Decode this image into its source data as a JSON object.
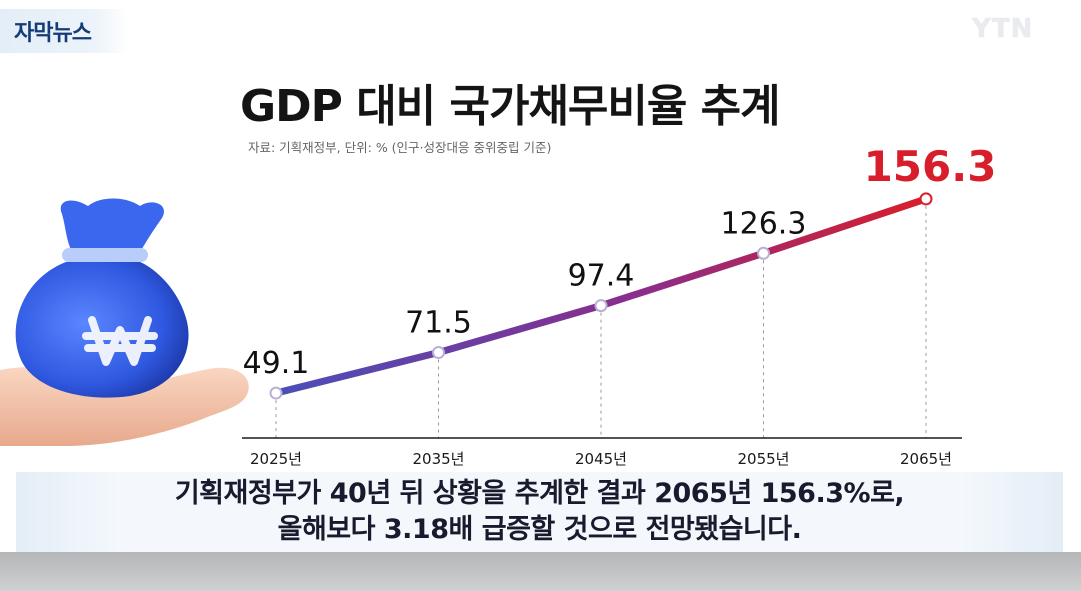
{
  "overlay": {
    "tag": "자막뉴스",
    "logo": "YTN"
  },
  "colors": {
    "line_start": "#4a4fb8",
    "line_end": "#d81e2a",
    "highlight_label": "#d81e2a",
    "bag": "#2f58e0"
  },
  "icons": {
    "bag": "money-bag-icon",
    "won": "won-sign-icon",
    "hand": "hand-icon"
  },
  "chart_data": {
    "type": "line",
    "title": "GDP 대비 국가채무비율 추계",
    "subtitle": "자료: 기획재정부, 단위: % (인구·성장대응 중위중립 기준)",
    "categories": [
      "2025년",
      "2035년",
      "2045년",
      "2055년",
      "2065년"
    ],
    "values": [
      49.1,
      71.5,
      97.4,
      126.3,
      156.3
    ],
    "value_labels": [
      "49.1",
      "71.5",
      "97.4",
      "126.3",
      "156.3"
    ],
    "highlight_index": 4,
    "ylim": [
      0,
      180
    ],
    "grid": "vertical dashed"
  },
  "caption": {
    "line1": "기획재정부가 40년 뒤 상황을 추계한 결과 2065년 156.3%로,",
    "line2": "올해보다 3.18배 급증할 것으로 전망됐습니다."
  }
}
